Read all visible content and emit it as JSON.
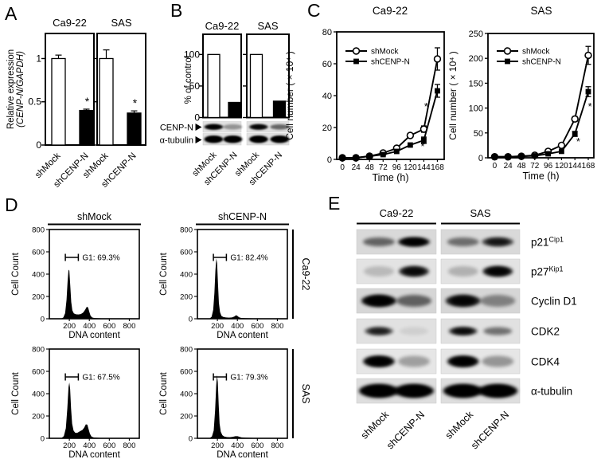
{
  "panels": {
    "A": {
      "letter": "A",
      "ylabel_line1": "Relative expression",
      "ylabel_line2": "(CENP-N/GAPDH)"
    },
    "B": {
      "letter": "B",
      "ylabel": "% of control",
      "blot_rows": [
        {
          "label": "CENP-N",
          "bands": [
            0.92,
            0.35,
            0.85,
            0.55
          ]
        },
        {
          "label": "α-tubulin",
          "bands": [
            1,
            1,
            1,
            1
          ]
        }
      ],
      "lane_labels": [
        "shMock",
        "shCENP-N",
        "shMock",
        "shCENP-N"
      ]
    },
    "C": {
      "letter": "C"
    },
    "D": {
      "letter": "D"
    },
    "E": {
      "letter": "E",
      "col_headers": [
        "Ca9-22",
        "SAS"
      ],
      "rows": [
        {
          "label": "p21",
          "sup": "Cip1",
          "bands": [
            0.55,
            0.97,
            0.5,
            0.7
          ]
        },
        {
          "label": "p27",
          "sup": "Kip1",
          "bands": [
            0.18,
            0.8,
            0.22,
            0.88
          ]
        },
        {
          "label": "Cyclin D1",
          "sup": "",
          "bands": [
            0.95,
            0.55,
            0.85,
            0.4
          ]
        },
        {
          "label": "CDK2",
          "sup": "",
          "bands": [
            0.65,
            0.08,
            0.8,
            0.5
          ]
        },
        {
          "label": "CDK4",
          "sup": "",
          "bands": [
            0.95,
            0.3,
            0.95,
            0.35
          ]
        },
        {
          "label": "α-tubulin",
          "sup": "",
          "bands": [
            1,
            1,
            1,
            1
          ]
        }
      ],
      "lane_labels": [
        "shMock",
        "shCENP-N",
        "shMock",
        "shCENP-N"
      ]
    }
  },
  "chart_data": [
    {
      "id": "A",
      "type": "bar",
      "title": "",
      "ylabel": "Relative expression (CENP-N/GAPDH)",
      "ylim": [
        0,
        1.29
      ],
      "yticks": [
        0,
        0.5,
        1
      ],
      "groups": [
        {
          "title": "Ca9-22",
          "categories": [
            "shMock",
            "shCENP-N"
          ],
          "values": [
            1.0,
            0.4
          ],
          "errors": [
            0.04,
            0.015
          ],
          "fills": [
            "white",
            "black"
          ],
          "sig": [
            "",
            "*"
          ]
        },
        {
          "title": "SAS",
          "categories": [
            "shMock",
            "shCENP-N"
          ],
          "values": [
            1.0,
            0.37
          ],
          "errors": [
            0.1,
            0.025
          ],
          "fills": [
            "white",
            "black"
          ],
          "sig": [
            "",
            "*"
          ]
        }
      ]
    },
    {
      "id": "B",
      "type": "bar",
      "title": "",
      "ylabel": "% of control",
      "ylim": [
        0,
        132
      ],
      "yticks": [
        0,
        50,
        100
      ],
      "groups": [
        {
          "title": "Ca9-22",
          "categories": [
            "shMock",
            "shCENP-N"
          ],
          "values": [
            100,
            24
          ],
          "errors": [
            0,
            0
          ],
          "fills": [
            "white",
            "black"
          ],
          "sig": [
            "",
            ""
          ]
        },
        {
          "title": "SAS",
          "categories": [
            "shMock",
            "shCENP-N"
          ],
          "values": [
            100,
            26
          ],
          "errors": [
            0,
            0
          ],
          "fills": [
            "white",
            "black"
          ],
          "sig": [
            "",
            ""
          ]
        }
      ]
    },
    {
      "id": "C1",
      "type": "line",
      "title": "Ca9-22",
      "xlabel": "Time (h)",
      "ylabel": "Cell number ( × 10⁴ )",
      "x": [
        0,
        24,
        48,
        72,
        96,
        120,
        144,
        168
      ],
      "xticks": [
        0,
        24,
        48,
        72,
        96,
        120,
        144,
        168
      ],
      "ylim": [
        0,
        80
      ],
      "yticks": [
        0,
        20,
        40,
        60,
        80
      ],
      "series": [
        {
          "name": "shMock",
          "marker": "open-circle",
          "values": [
            1,
            1,
            2,
            4,
            7,
            15,
            19,
            63
          ],
          "errors": [
            0,
            0,
            0,
            0,
            0,
            0,
            2,
            7
          ]
        },
        {
          "name": "shCENP-N",
          "marker": "filled-square",
          "values": [
            1,
            1,
            2,
            3,
            5,
            9,
            12,
            43
          ],
          "errors": [
            0,
            0,
            0,
            0,
            0,
            0,
            2,
            4
          ]
        }
      ],
      "annotations": [
        {
          "text": "*",
          "x": 148,
          "y": 31
        },
        {
          "text": "*",
          "x": 142,
          "y": 6
        }
      ]
    },
    {
      "id": "C2",
      "type": "line",
      "title": "SAS",
      "xlabel": "Time (h)",
      "ylabel": "Cell number ( × 10⁴ )",
      "x": [
        0,
        24,
        48,
        72,
        96,
        120,
        144,
        168
      ],
      "xticks": [
        0,
        24,
        48,
        72,
        96,
        120,
        144,
        168
      ],
      "ylim": [
        0,
        250
      ],
      "yticks": [
        0,
        50,
        100,
        150,
        200,
        250
      ],
      "series": [
        {
          "name": "shMock",
          "marker": "open-circle",
          "values": [
            2,
            2,
            3,
            5,
            13,
            25,
            78,
            206
          ],
          "errors": [
            0,
            0,
            0,
            0,
            0,
            0,
            5,
            18
          ]
        },
        {
          "name": "shCENP-N",
          "marker": "filled-square",
          "values": [
            2,
            2,
            3,
            4,
            8,
            13,
            48,
            133
          ],
          "errors": [
            0,
            0,
            0,
            0,
            0,
            0,
            5,
            10
          ]
        }
      ],
      "annotations": [
        {
          "text": "*",
          "x": 171,
          "y": 96
        },
        {
          "text": "*",
          "x": 150,
          "y": 26
        }
      ]
    },
    {
      "id": "D",
      "type": "histogram",
      "xlabel": "DNA content",
      "ylabel": "Cell Count",
      "xlim": [
        0,
        900
      ],
      "xticks": [
        200,
        400,
        600,
        800
      ],
      "ylim": [
        0,
        800
      ],
      "yticks": [
        0,
        200,
        400,
        600,
        800
      ],
      "col_headers": [
        "shMock",
        "shCENP-N"
      ],
      "row_labels": [
        "Ca9-22",
        "SAS"
      ],
      "cells": [
        {
          "row": "Ca9-22",
          "col": "shMock",
          "g1_label": "G1: 69.3%",
          "g1_percent": 69.3,
          "profile": [
            [
              115,
              0
            ],
            [
              140,
              12
            ],
            [
              158,
              50
            ],
            [
              172,
              170
            ],
            [
              183,
              340
            ],
            [
              192,
              440
            ],
            [
              200,
              430
            ],
            [
              209,
              300
            ],
            [
              219,
              150
            ],
            [
              230,
              75
            ],
            [
              245,
              48
            ],
            [
              265,
              40
            ],
            [
              290,
              38
            ],
            [
              315,
              42
            ],
            [
              338,
              55
            ],
            [
              358,
              80
            ],
            [
              375,
              108
            ],
            [
              388,
              100
            ],
            [
              400,
              62
            ],
            [
              412,
              28
            ],
            [
              428,
              12
            ],
            [
              450,
              6
            ],
            [
              520,
              4
            ],
            [
              650,
              3
            ],
            [
              790,
              3
            ],
            [
              825,
              0
            ]
          ]
        },
        {
          "row": "Ca9-22",
          "col": "shCENP-N",
          "g1_label": "G1: 82.4%",
          "g1_percent": 82.4,
          "profile": [
            [
              120,
              0
            ],
            [
              142,
              18
            ],
            [
              158,
              80
            ],
            [
              170,
              230
            ],
            [
              180,
              430
            ],
            [
              189,
              540
            ],
            [
              197,
              500
            ],
            [
              206,
              310
            ],
            [
              215,
              140
            ],
            [
              226,
              60
            ],
            [
              240,
              26
            ],
            [
              258,
              16
            ],
            [
              285,
              12
            ],
            [
              315,
              10
            ],
            [
              345,
              12
            ],
            [
              368,
              20
            ],
            [
              388,
              32
            ],
            [
              402,
              24
            ],
            [
              416,
              13
            ],
            [
              438,
              7
            ],
            [
              480,
              5
            ],
            [
              560,
              4
            ],
            [
              680,
              3
            ],
            [
              790,
              3
            ],
            [
              825,
              0
            ]
          ]
        },
        {
          "row": "SAS",
          "col": "shMock",
          "g1_label": "G1: 67.5%",
          "g1_percent": 67.5,
          "profile": [
            [
              118,
              0
            ],
            [
              145,
              20
            ],
            [
              165,
              90
            ],
            [
              180,
              270
            ],
            [
              192,
              460
            ],
            [
              200,
              500
            ],
            [
              208,
              440
            ],
            [
              217,
              270
            ],
            [
              228,
              130
            ],
            [
              242,
              70
            ],
            [
              258,
              50
            ],
            [
              278,
              48
            ],
            [
              296,
              58
            ],
            [
              312,
              66
            ],
            [
              330,
              74
            ],
            [
              348,
              95
            ],
            [
              365,
              125
            ],
            [
              380,
              122
            ],
            [
              393,
              80
            ],
            [
              406,
              40
            ],
            [
              422,
              15
            ],
            [
              445,
              7
            ],
            [
              510,
              4
            ],
            [
              650,
              3
            ],
            [
              790,
              3
            ],
            [
              825,
              0
            ]
          ]
        },
        {
          "row": "SAS",
          "col": "shCENP-N",
          "g1_label": "G1: 79.3%",
          "g1_percent": 79.3,
          "profile": [
            [
              118,
              0
            ],
            [
              145,
              16
            ],
            [
              163,
              70
            ],
            [
              177,
              250
            ],
            [
              188,
              470
            ],
            [
              196,
              570
            ],
            [
              204,
              500
            ],
            [
              213,
              300
            ],
            [
              222,
              130
            ],
            [
              234,
              58
            ],
            [
              250,
              28
            ],
            [
              268,
              16
            ],
            [
              295,
              11
            ],
            [
              325,
              10
            ],
            [
              355,
              13
            ],
            [
              380,
              19
            ],
            [
              402,
              19
            ],
            [
              420,
              13
            ],
            [
              442,
              8
            ],
            [
              490,
              5
            ],
            [
              560,
              4
            ],
            [
              680,
              3
            ],
            [
              790,
              3
            ],
            [
              825,
              0
            ]
          ]
        }
      ]
    }
  ]
}
